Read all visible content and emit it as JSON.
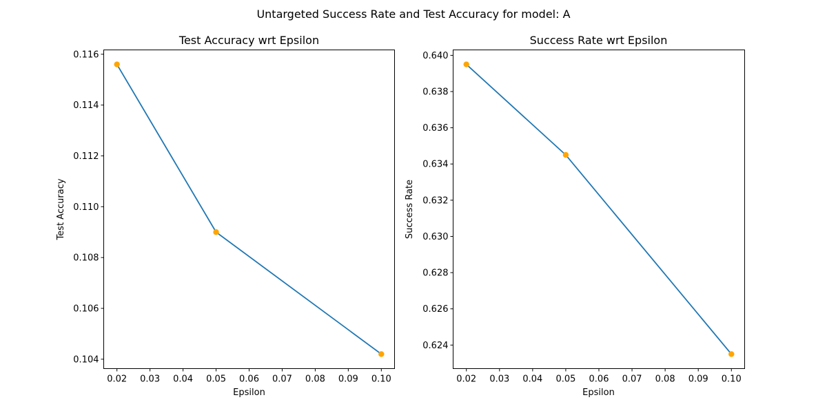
{
  "figure": {
    "suptitle": "Untargeted Success Rate and Test Accuracy for model: A",
    "line_color": "#1f77b4",
    "marker_color": "#ffa500"
  },
  "chart_data": [
    {
      "type": "line",
      "title": "Test Accuracy wrt Epsilon",
      "xlabel": "Epsilon",
      "ylabel": "Test Accuracy",
      "x": [
        0.02,
        0.05,
        0.1
      ],
      "y": [
        0.1156,
        0.109,
        0.1042
      ],
      "xlim": [
        0.016,
        0.104
      ],
      "ylim": [
        0.10363,
        0.11617
      ],
      "xticks": [
        0.02,
        0.03,
        0.04,
        0.05,
        0.06,
        0.07,
        0.08,
        0.09,
        0.1
      ],
      "xtick_labels": [
        "0.02",
        "0.03",
        "0.04",
        "0.05",
        "0.06",
        "0.07",
        "0.08",
        "0.09",
        "0.10"
      ],
      "yticks": [
        0.104,
        0.106,
        0.108,
        0.11,
        0.112,
        0.114,
        0.116
      ],
      "ytick_labels": [
        "0.104",
        "0.106",
        "0.108",
        "0.110",
        "0.112",
        "0.114",
        "0.116"
      ],
      "grid": false,
      "markers": true
    },
    {
      "type": "line",
      "title": "Success Rate wrt Epsilon",
      "xlabel": "Epsilon",
      "ylabel": "Success Rate",
      "x": [
        0.02,
        0.05,
        0.1
      ],
      "y": [
        0.6395,
        0.6345,
        0.6235
      ],
      "xlim": [
        0.016,
        0.104
      ],
      "ylim": [
        0.6227,
        0.6403
      ],
      "xticks": [
        0.02,
        0.03,
        0.04,
        0.05,
        0.06,
        0.07,
        0.08,
        0.09,
        0.1
      ],
      "xtick_labels": [
        "0.02",
        "0.03",
        "0.04",
        "0.05",
        "0.06",
        "0.07",
        "0.08",
        "0.09",
        "0.10"
      ],
      "yticks": [
        0.624,
        0.626,
        0.628,
        0.63,
        0.632,
        0.634,
        0.636,
        0.638,
        0.64
      ],
      "ytick_labels": [
        "0.624",
        "0.626",
        "0.628",
        "0.630",
        "0.632",
        "0.634",
        "0.636",
        "0.638",
        "0.640"
      ],
      "grid": false,
      "markers": true
    }
  ]
}
